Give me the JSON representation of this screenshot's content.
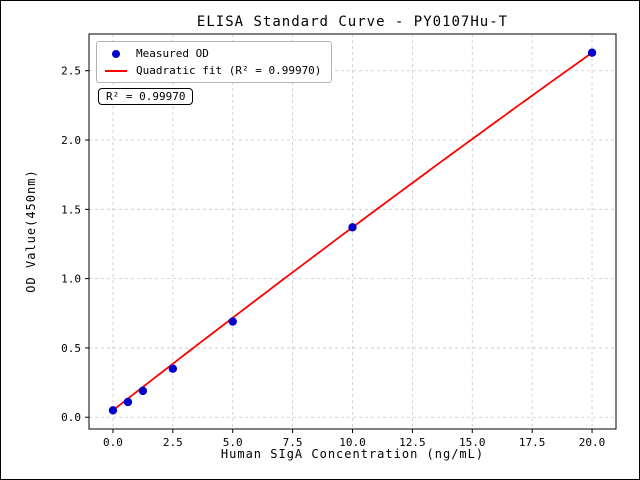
{
  "chart_data": {
    "type": "scatter",
    "title": "ELISA Standard Curve - PY0107Hu-T",
    "xlabel": "Human SIgA Concentration (ng/mL)",
    "ylabel": "OD Value(450nm)",
    "xlim": [
      -1,
      21
    ],
    "ylim": [
      -0.085,
      2.765
    ],
    "xticks": [
      0,
      2.5,
      5,
      7.5,
      10,
      12.5,
      15,
      17.5,
      20
    ],
    "xtick_labels": [
      "0.0",
      "2.5",
      "5.0",
      "7.5",
      "10.0",
      "12.5",
      "15.0",
      "17.5",
      "20.0"
    ],
    "yticks": [
      0,
      0.5,
      1,
      1.5,
      2,
      2.5
    ],
    "ytick_labels": [
      "0.0",
      "0.5",
      "1.0",
      "1.5",
      "2.0",
      "2.5"
    ],
    "grid": true,
    "grid_color": "#c9c9c9",
    "legend_position": "upper left",
    "annotation": "R² = 0.99970",
    "series": [
      {
        "name": "Measured OD",
        "type": "scatter",
        "color": "#0000cd",
        "x": [
          0,
          0.625,
          1.25,
          2.5,
          5,
          10,
          20
        ],
        "y": [
          0.05,
          0.11,
          0.19,
          0.35,
          0.69,
          1.37,
          2.63
        ]
      },
      {
        "name": "Quadratic fit (R² = 0.99970)",
        "type": "line",
        "color": "#ff0000",
        "fit": {
          "a": 0.05,
          "b": 0.135,
          "c": -0.0003
        },
        "x_range": [
          0,
          20
        ]
      }
    ]
  }
}
